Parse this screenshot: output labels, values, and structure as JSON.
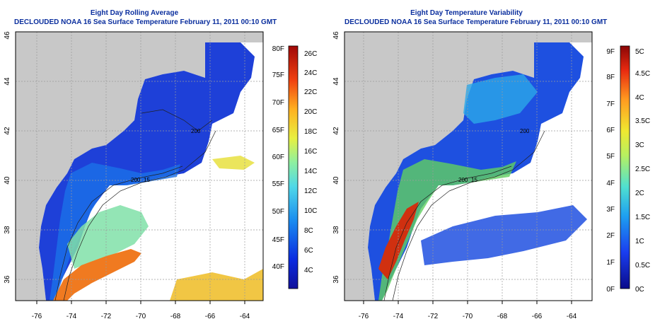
{
  "left_panel": {
    "title_line1": "Eight Day Rolling Average",
    "title_line2": "DECLOUDED NOAA 16 Sea Surface Temperature February 11, 2011 00:10 GMT",
    "lon_ticks": [
      "-76",
      "-74",
      "-72",
      "-70",
      "-68",
      "-66",
      "-64"
    ],
    "lat_ticks": [
      "36",
      "38",
      "40",
      "42",
      "44",
      "46"
    ],
    "colorbar_f": [
      "40F",
      "45F",
      "50F",
      "55F",
      "60F",
      "65F",
      "70F",
      "75F",
      "80F"
    ],
    "colorbar_c": [
      "4C",
      "6C",
      "8C",
      "10C",
      "12C",
      "14C",
      "16C",
      "18C",
      "20C",
      "22C",
      "24C",
      "26C"
    ],
    "contour_labels": [
      "200",
      "15",
      "200"
    ]
  },
  "right_panel": {
    "title_line1": "Eight Day Temperature Variability",
    "title_line2": "DECLOUDED NOAA 16 Sea Surface Temperature February 11, 2011 00:10 GMT",
    "lon_ticks": [
      "-76",
      "-74",
      "-72",
      "-70",
      "-68",
      "-66",
      "-64"
    ],
    "lat_ticks": [
      "36",
      "38",
      "40",
      "42",
      "44",
      "46"
    ],
    "colorbar_f": [
      "0F",
      "1F",
      "2F",
      "3F",
      "4F",
      "5F",
      "6F",
      "7F",
      "8F",
      "9F"
    ],
    "colorbar_c": [
      "0C",
      "0.5C",
      "1C",
      "1.5C",
      "2C",
      "2.5C",
      "3C",
      "3.5C",
      "4C",
      "4.5C",
      "5C"
    ],
    "contour_labels": [
      "200",
      "15",
      "200"
    ]
  },
  "colors": {
    "title": "#0b2f9e",
    "land": "#c8c8c8",
    "cold_water": "#1e40d8",
    "grid": "#9a9a9a"
  }
}
